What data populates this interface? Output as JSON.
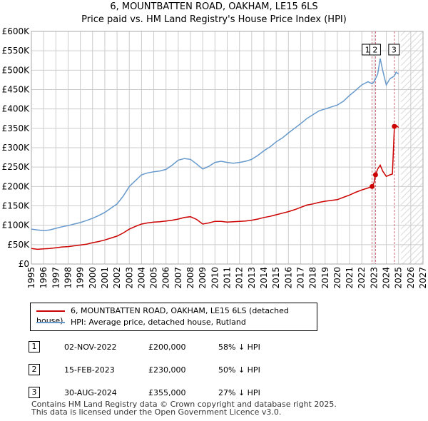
{
  "title_line1": "6, MOUNTBATTEN ROAD, OAKHAM, LE15 6LS",
  "title_line2": "Price paid vs. HM Land Registry's House Price Index (HPI)",
  "colors": {
    "property": "#cc0000",
    "hpi": "#6699cc",
    "marker_line": "#cc6677",
    "grid": "#cccccc"
  },
  "chart_data": {
    "type": "line",
    "xlim": [
      1995,
      2027
    ],
    "ylim": [
      0,
      600000
    ],
    "x_ticks": [
      1995,
      1996,
      1997,
      1998,
      1999,
      2000,
      2001,
      2002,
      2003,
      2004,
      2005,
      2006,
      2007,
      2008,
      2009,
      2010,
      2011,
      2012,
      2013,
      2014,
      2015,
      2016,
      2017,
      2018,
      2019,
      2020,
      2021,
      2022,
      2023,
      2024,
      2025,
      2026,
      2027
    ],
    "y_ticks": [
      {
        "value": 0,
        "label": "£0"
      },
      {
        "value": 50000,
        "label": "£50K"
      },
      {
        "value": 100000,
        "label": "£100K"
      },
      {
        "value": 150000,
        "label": "£150K"
      },
      {
        "value": 200000,
        "label": "£200K"
      },
      {
        "value": 250000,
        "label": "£250K"
      },
      {
        "value": 300000,
        "label": "£300K"
      },
      {
        "value": 350000,
        "label": "£350K"
      },
      {
        "value": 400000,
        "label": "£400K"
      },
      {
        "value": 450000,
        "label": "£450K"
      },
      {
        "value": 500000,
        "label": "£500K"
      },
      {
        "value": 550000,
        "label": "£550K"
      },
      {
        "value": 600000,
        "label": "£600K"
      }
    ],
    "future_shade_from": 2025.2,
    "series": [
      {
        "name": "6, MOUNTBATTEN ROAD, OAKHAM, LE15 6LS (detached house)",
        "color": "#cc0000",
        "points": [
          [
            1995.0,
            40000
          ],
          [
            1995.5,
            38000
          ],
          [
            1996.0,
            39000
          ],
          [
            1996.5,
            40000
          ],
          [
            1997.0,
            42000
          ],
          [
            1997.5,
            44000
          ],
          [
            1998.0,
            45000
          ],
          [
            1998.5,
            47000
          ],
          [
            1999.0,
            49000
          ],
          [
            1999.5,
            51000
          ],
          [
            2000.0,
            55000
          ],
          [
            2000.5,
            58000
          ],
          [
            2001.0,
            62000
          ],
          [
            2001.5,
            67000
          ],
          [
            2002.0,
            72000
          ],
          [
            2002.5,
            80000
          ],
          [
            2003.0,
            90000
          ],
          [
            2003.5,
            97000
          ],
          [
            2004.0,
            103000
          ],
          [
            2004.5,
            106000
          ],
          [
            2005.0,
            108000
          ],
          [
            2005.5,
            109000
          ],
          [
            2006.0,
            111000
          ],
          [
            2006.5,
            113000
          ],
          [
            2007.0,
            116000
          ],
          [
            2007.5,
            120000
          ],
          [
            2008.0,
            122000
          ],
          [
            2008.5,
            115000
          ],
          [
            2009.0,
            103000
          ],
          [
            2009.5,
            106000
          ],
          [
            2010.0,
            110000
          ],
          [
            2010.5,
            110000
          ],
          [
            2011.0,
            108000
          ],
          [
            2011.5,
            109000
          ],
          [
            2012.0,
            110000
          ],
          [
            2012.5,
            111000
          ],
          [
            2013.0,
            113000
          ],
          [
            2013.5,
            116000
          ],
          [
            2014.0,
            120000
          ],
          [
            2014.5,
            123000
          ],
          [
            2015.0,
            127000
          ],
          [
            2015.5,
            131000
          ],
          [
            2016.0,
            135000
          ],
          [
            2016.5,
            140000
          ],
          [
            2017.0,
            146000
          ],
          [
            2017.5,
            152000
          ],
          [
            2018.0,
            155000
          ],
          [
            2018.5,
            159000
          ],
          [
            2019.0,
            162000
          ],
          [
            2019.5,
            164000
          ],
          [
            2020.0,
            166000
          ],
          [
            2020.5,
            172000
          ],
          [
            2021.0,
            178000
          ],
          [
            2021.5,
            185000
          ],
          [
            2022.0,
            191000
          ],
          [
            2022.5,
            196000
          ],
          [
            2022.84,
            200000
          ],
          [
            2023.0,
            210000
          ],
          [
            2023.12,
            230000
          ],
          [
            2023.3,
            245000
          ],
          [
            2023.5,
            255000
          ],
          [
            2023.7,
            240000
          ],
          [
            2024.0,
            226000
          ],
          [
            2024.3,
            230000
          ],
          [
            2024.5,
            232000
          ],
          [
            2024.66,
            355000
          ],
          [
            2024.8,
            358000
          ],
          [
            2025.0,
            352000
          ]
        ]
      },
      {
        "name": "HPI: Average price, detached house, Rutland",
        "color": "#6699cc",
        "points": [
          [
            1995.0,
            90000
          ],
          [
            1995.5,
            88000
          ],
          [
            1996.0,
            86000
          ],
          [
            1996.5,
            88000
          ],
          [
            1997.0,
            92000
          ],
          [
            1997.5,
            96000
          ],
          [
            1998.0,
            99000
          ],
          [
            1998.5,
            103000
          ],
          [
            1999.0,
            107000
          ],
          [
            1999.5,
            112000
          ],
          [
            2000.0,
            118000
          ],
          [
            2000.5,
            125000
          ],
          [
            2001.0,
            133000
          ],
          [
            2001.5,
            144000
          ],
          [
            2002.0,
            155000
          ],
          [
            2002.5,
            175000
          ],
          [
            2003.0,
            200000
          ],
          [
            2003.5,
            215000
          ],
          [
            2004.0,
            230000
          ],
          [
            2004.5,
            235000
          ],
          [
            2005.0,
            238000
          ],
          [
            2005.5,
            240000
          ],
          [
            2006.0,
            244000
          ],
          [
            2006.5,
            255000
          ],
          [
            2007.0,
            268000
          ],
          [
            2007.5,
            272000
          ],
          [
            2008.0,
            270000
          ],
          [
            2008.5,
            258000
          ],
          [
            2009.0,
            245000
          ],
          [
            2009.5,
            252000
          ],
          [
            2010.0,
            262000
          ],
          [
            2010.5,
            265000
          ],
          [
            2011.0,
            262000
          ],
          [
            2011.5,
            260000
          ],
          [
            2012.0,
            262000
          ],
          [
            2012.5,
            265000
          ],
          [
            2013.0,
            270000
          ],
          [
            2013.5,
            280000
          ],
          [
            2014.0,
            292000
          ],
          [
            2014.5,
            302000
          ],
          [
            2015.0,
            315000
          ],
          [
            2015.5,
            325000
          ],
          [
            2016.0,
            338000
          ],
          [
            2016.5,
            350000
          ],
          [
            2017.0,
            362000
          ],
          [
            2017.5,
            375000
          ],
          [
            2018.0,
            385000
          ],
          [
            2018.5,
            395000
          ],
          [
            2019.0,
            400000
          ],
          [
            2019.5,
            405000
          ],
          [
            2020.0,
            410000
          ],
          [
            2020.5,
            420000
          ],
          [
            2021.0,
            435000
          ],
          [
            2021.5,
            448000
          ],
          [
            2022.0,
            462000
          ],
          [
            2022.5,
            470000
          ],
          [
            2022.84,
            465000
          ],
          [
            2023.0,
            470000
          ],
          [
            2023.3,
            490000
          ],
          [
            2023.5,
            530000
          ],
          [
            2023.7,
            500000
          ],
          [
            2024.0,
            462000
          ],
          [
            2024.3,
            478000
          ],
          [
            2024.66,
            485000
          ],
          [
            2024.8,
            495000
          ],
          [
            2025.0,
            490000
          ]
        ]
      }
    ],
    "sales": [
      {
        "num": "1",
        "x": 2022.84,
        "price": 200000
      },
      {
        "num": "2",
        "x": 2023.12,
        "price": 230000
      },
      {
        "num": "3",
        "x": 2024.66,
        "price": 355000
      }
    ]
  },
  "legend": {
    "property": "6, MOUNTBATTEN ROAD, OAKHAM, LE15 6LS (detached house)",
    "hpi": "HPI: Average price, detached house, Rutland"
  },
  "transactions": [
    {
      "num": "1",
      "date": "02-NOV-2022",
      "price": "£200,000",
      "pct": "58% ↓ HPI"
    },
    {
      "num": "2",
      "date": "15-FEB-2023",
      "price": "£230,000",
      "pct": "50% ↓ HPI"
    },
    {
      "num": "3",
      "date": "30-AUG-2024",
      "price": "£355,000",
      "pct": "27% ↓ HPI"
    }
  ],
  "footer_line1": "Contains HM Land Registry data © Crown copyright and database right 2025.",
  "footer_line2": "This data is licensed under the Open Government Licence v3.0."
}
